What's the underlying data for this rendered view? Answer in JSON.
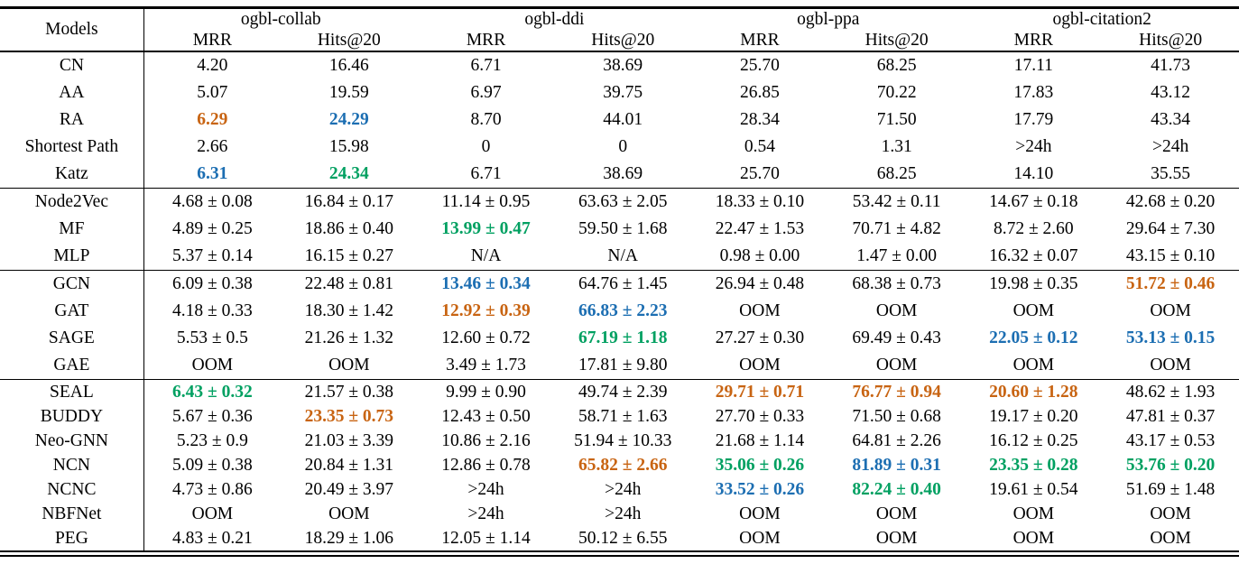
{
  "colors": {
    "rank1_best_green": "#00a061",
    "rank2_second_blue": "#1c6eb2",
    "rank3_third_orange": "#c86412"
  },
  "header": {
    "models_label": "Models",
    "groups": [
      {
        "name": "ogbl-collab",
        "metrics": [
          "MRR",
          "Hits@20"
        ]
      },
      {
        "name": "ogbl-ddi",
        "metrics": [
          "MRR",
          "Hits@20"
        ]
      },
      {
        "name": "ogbl-ppa",
        "metrics": [
          "MRR",
          "Hits@20"
        ]
      },
      {
        "name": "ogbl-citation2",
        "metrics": [
          "MRR",
          "Hits@20"
        ]
      }
    ]
  },
  "sections": [
    {
      "rows": [
        {
          "model": "CN",
          "values": [
            {
              "t": "4.20"
            },
            {
              "t": "16.46"
            },
            {
              "t": "6.71"
            },
            {
              "t": "38.69"
            },
            {
              "t": "25.70"
            },
            {
              "t": "68.25"
            },
            {
              "t": "17.11"
            },
            {
              "t": "41.73"
            }
          ]
        },
        {
          "model": "AA",
          "values": [
            {
              "t": "5.07"
            },
            {
              "t": "19.59"
            },
            {
              "t": "6.97"
            },
            {
              "t": "39.75"
            },
            {
              "t": "26.85"
            },
            {
              "t": "70.22"
            },
            {
              "t": "17.83"
            },
            {
              "t": "43.12"
            }
          ]
        },
        {
          "model": "RA",
          "values": [
            {
              "t": "6.29",
              "rank": 3
            },
            {
              "t": "24.29",
              "rank": 2
            },
            {
              "t": "8.70"
            },
            {
              "t": "44.01"
            },
            {
              "t": "28.34"
            },
            {
              "t": "71.50"
            },
            {
              "t": "17.79"
            },
            {
              "t": "43.34"
            }
          ]
        },
        {
          "model": "Shortest Path",
          "values": [
            {
              "t": "2.66"
            },
            {
              "t": "15.98"
            },
            {
              "t": "0"
            },
            {
              "t": "0"
            },
            {
              "t": "0.54"
            },
            {
              "t": "1.31"
            },
            {
              "t": ">24h"
            },
            {
              "t": ">24h"
            }
          ]
        },
        {
          "model": "Katz",
          "values": [
            {
              "t": "6.31",
              "rank": 2
            },
            {
              "t": "24.34",
              "rank": 1
            },
            {
              "t": "6.71"
            },
            {
              "t": "38.69"
            },
            {
              "t": "25.70"
            },
            {
              "t": "68.25"
            },
            {
              "t": "14.10"
            },
            {
              "t": "35.55"
            }
          ]
        }
      ]
    },
    {
      "rows": [
        {
          "model": "Node2Vec",
          "values": [
            {
              "t": "4.68 ± 0.08"
            },
            {
              "t": "16.84 ± 0.17"
            },
            {
              "t": "11.14 ± 0.95"
            },
            {
              "t": "63.63 ± 2.05"
            },
            {
              "t": "18.33 ± 0.10"
            },
            {
              "t": "53.42 ± 0.11"
            },
            {
              "t": "14.67 ± 0.18"
            },
            {
              "t": "42.68 ± 0.20"
            }
          ]
        },
        {
          "model": "MF",
          "values": [
            {
              "t": "4.89 ± 0.25"
            },
            {
              "t": "18.86 ± 0.40"
            },
            {
              "t": "13.99 ± 0.47",
              "rank": 1
            },
            {
              "t": "59.50 ± 1.68"
            },
            {
              "t": "22.47 ± 1.53"
            },
            {
              "t": "70.71 ± 4.82"
            },
            {
              "t": "8.72 ± 2.60"
            },
            {
              "t": "29.64 ± 7.30"
            }
          ]
        },
        {
          "model": "MLP",
          "values": [
            {
              "t": "5.37 ± 0.14"
            },
            {
              "t": "16.15 ± 0.27"
            },
            {
              "t": "N/A"
            },
            {
              "t": "N/A"
            },
            {
              "t": "0.98 ± 0.00"
            },
            {
              "t": "1.47 ± 0.00"
            },
            {
              "t": "16.32 ± 0.07"
            },
            {
              "t": "43.15 ± 0.10"
            }
          ]
        }
      ]
    },
    {
      "rows": [
        {
          "model": "GCN",
          "values": [
            {
              "t": "6.09 ± 0.38"
            },
            {
              "t": "22.48 ± 0.81"
            },
            {
              "t": "13.46 ± 0.34",
              "rank": 2
            },
            {
              "t": "64.76 ± 1.45"
            },
            {
              "t": "26.94 ± 0.48"
            },
            {
              "t": "68.38 ± 0.73"
            },
            {
              "t": "19.98 ± 0.35"
            },
            {
              "t": "51.72 ± 0.46",
              "rank": 3
            }
          ]
        },
        {
          "model": "GAT",
          "values": [
            {
              "t": "4.18 ± 0.33"
            },
            {
              "t": "18.30 ± 1.42"
            },
            {
              "t": "12.92 ± 0.39",
              "rank": 3
            },
            {
              "t": "66.83 ± 2.23",
              "rank": 2
            },
            {
              "t": "OOM"
            },
            {
              "t": "OOM"
            },
            {
              "t": "OOM"
            },
            {
              "t": "OOM"
            }
          ]
        },
        {
          "model": "SAGE",
          "values": [
            {
              "t": "5.53 ± 0.5"
            },
            {
              "t": "21.26 ± 1.32"
            },
            {
              "t": "12.60 ± 0.72"
            },
            {
              "t": "67.19 ± 1.18",
              "rank": 1
            },
            {
              "t": "27.27 ± 0.30"
            },
            {
              "t": "69.49 ± 0.43"
            },
            {
              "t": "22.05 ± 0.12",
              "rank": 2
            },
            {
              "t": "53.13 ± 0.15",
              "rank": 2
            }
          ]
        },
        {
          "model": "GAE",
          "values": [
            {
              "t": "OOM"
            },
            {
              "t": "OOM"
            },
            {
              "t": "3.49 ± 1.73"
            },
            {
              "t": "17.81 ± 9.80"
            },
            {
              "t": "OOM"
            },
            {
              "t": "OOM"
            },
            {
              "t": "OOM"
            },
            {
              "t": "OOM"
            }
          ]
        }
      ]
    },
    {
      "rows": [
        {
          "model": "SEAL",
          "values": [
            {
              "t": "6.43 ± 0.32",
              "rank": 1
            },
            {
              "t": "21.57 ± 0.38"
            },
            {
              "t": "9.99 ± 0.90"
            },
            {
              "t": "49.74 ± 2.39"
            },
            {
              "t": "29.71 ± 0.71",
              "rank": 3
            },
            {
              "t": "76.77 ± 0.94",
              "rank": 3
            },
            {
              "t": "20.60 ± 1.28",
              "rank": 3
            },
            {
              "t": "48.62 ± 1.93"
            }
          ]
        },
        {
          "model": "BUDDY",
          "values": [
            {
              "t": "5.67 ± 0.36"
            },
            {
              "t": "23.35 ± 0.73",
              "rank": 3
            },
            {
              "t": "12.43 ± 0.50"
            },
            {
              "t": "58.71 ± 1.63"
            },
            {
              "t": "27.70 ± 0.33"
            },
            {
              "t": "71.50 ± 0.68"
            },
            {
              "t": "19.17 ± 0.20"
            },
            {
              "t": "47.81 ± 0.37"
            }
          ]
        },
        {
          "model": "Neo-GNN",
          "values": [
            {
              "t": "5.23 ± 0.9"
            },
            {
              "t": "21.03 ± 3.39"
            },
            {
              "t": "10.86 ± 2.16"
            },
            {
              "t": "51.94 ± 10.33"
            },
            {
              "t": "21.68 ± 1.14"
            },
            {
              "t": "64.81 ± 2.26"
            },
            {
              "t": "16.12 ± 0.25"
            },
            {
              "t": "43.17 ± 0.53"
            }
          ]
        },
        {
          "model": "NCN",
          "values": [
            {
              "t": "5.09 ± 0.38"
            },
            {
              "t": "20.84 ± 1.31"
            },
            {
              "t": "12.86 ± 0.78"
            },
            {
              "t": "65.82 ± 2.66",
              "rank": 3
            },
            {
              "t": "35.06 ± 0.26",
              "rank": 1
            },
            {
              "t": "81.89 ± 0.31",
              "rank": 2
            },
            {
              "t": "23.35 ± 0.28",
              "rank": 1
            },
            {
              "t": "53.76 ± 0.20",
              "rank": 1
            }
          ]
        },
        {
          "model": "NCNC",
          "values": [
            {
              "t": "4.73 ± 0.86"
            },
            {
              "t": "20.49 ± 3.97"
            },
            {
              "t": ">24h"
            },
            {
              "t": ">24h"
            },
            {
              "t": "33.52 ± 0.26",
              "rank": 2
            },
            {
              "t": "82.24 ± 0.40",
              "rank": 1
            },
            {
              "t": "19.61 ± 0.54"
            },
            {
              "t": "51.69 ± 1.48"
            }
          ]
        },
        {
          "model": "NBFNet",
          "values": [
            {
              "t": "OOM"
            },
            {
              "t": "OOM"
            },
            {
              "t": ">24h"
            },
            {
              "t": ">24h"
            },
            {
              "t": "OOM"
            },
            {
              "t": "OOM"
            },
            {
              "t": "OOM"
            },
            {
              "t": "OOM"
            }
          ]
        },
        {
          "model": "PEG",
          "values": [
            {
              "t": "4.83 ± 0.21"
            },
            {
              "t": "18.29 ± 1.06"
            },
            {
              "t": "12.05 ± 1.14"
            },
            {
              "t": "50.12 ± 6.55"
            },
            {
              "t": "OOM"
            },
            {
              "t": "OOM"
            },
            {
              "t": "OOM"
            },
            {
              "t": "OOM"
            }
          ]
        }
      ]
    }
  ]
}
